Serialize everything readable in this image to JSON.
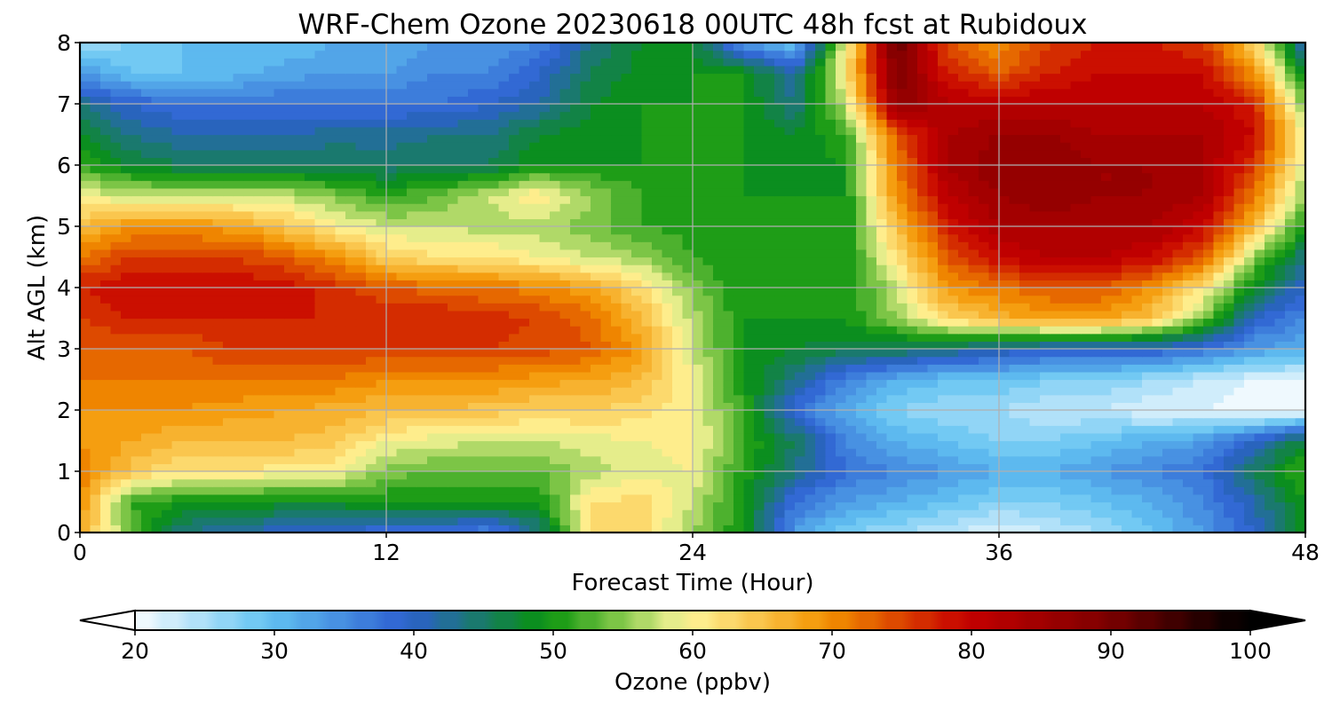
{
  "chart_data": {
    "type": "heatmap",
    "title": "WRF-Chem Ozone  20230618 00UTC 48h fcst at Rubidoux",
    "xlabel": "Forecast Time (Hour)",
    "ylabel": "Alt AGL (km)",
    "xlim": [
      0,
      48
    ],
    "ylim": [
      0,
      8
    ],
    "xticks": [
      0,
      12,
      24,
      36,
      48
    ],
    "yticks": [
      0,
      1,
      2,
      3,
      4,
      5,
      6,
      7,
      8
    ],
    "grid": true,
    "colorbar": {
      "label": "Ozone  (ppbv)",
      "range": [
        20,
        100
      ],
      "ticks": [
        20,
        30,
        40,
        50,
        60,
        70,
        80,
        90,
        100
      ],
      "extend": "both",
      "colors": [
        {
          "v": 20,
          "c": "#ffffff"
        },
        {
          "v": 30,
          "c": "#62c3f2"
        },
        {
          "v": 40,
          "c": "#2d5fd1"
        },
        {
          "v": 50,
          "c": "#07930b"
        },
        {
          "v": 55,
          "c": "#7cc546"
        },
        {
          "v": 60,
          "c": "#fff79c"
        },
        {
          "v": 70,
          "c": "#f49400"
        },
        {
          "v": 80,
          "c": "#c60000"
        },
        {
          "v": 90,
          "c": "#800000"
        },
        {
          "v": 100,
          "c": "#000000"
        }
      ]
    },
    "x": [
      0,
      2,
      4,
      6,
      8,
      10,
      12,
      14,
      16,
      18,
      20,
      22,
      24,
      26,
      28,
      30,
      32,
      34,
      36,
      38,
      40,
      42,
      44,
      46,
      48
    ],
    "y": [
      0,
      0.5,
      1,
      1.5,
      2,
      2.5,
      3,
      3.5,
      4,
      4.5,
      5,
      5.5,
      6,
      6.5,
      7,
      7.5,
      8
    ],
    "z": [
      [
        68,
        54,
        44,
        42,
        40,
        40,
        38,
        38,
        36,
        44,
        62,
        63,
        56,
        50,
        34,
        28,
        26,
        24,
        22,
        24,
        26,
        30,
        34,
        40,
        50
      ],
      [
        70,
        52,
        50,
        50,
        49,
        49,
        50,
        50,
        50,
        50,
        62,
        63,
        58,
        50,
        38,
        34,
        32,
        30,
        28,
        28,
        30,
        32,
        36,
        42,
        50
      ],
      [
        72,
        65,
        62,
        62,
        61,
        61,
        55,
        54,
        54,
        54,
        57,
        59,
        60,
        51,
        44,
        38,
        36,
        34,
        32,
        32,
        34,
        36,
        38,
        46,
        53
      ],
      [
        70,
        68,
        66,
        66,
        66,
        65,
        60,
        59,
        58,
        58,
        59,
        60,
        61,
        52,
        46,
        36,
        32,
        30,
        28,
        28,
        30,
        32,
        34,
        40,
        48
      ],
      [
        70,
        70,
        70,
        69,
        68,
        67,
        66,
        66,
        65,
        64,
        64,
        63,
        60,
        52,
        38,
        32,
        28,
        26,
        26,
        24,
        24,
        22,
        22,
        20,
        20
      ],
      [
        72,
        72,
        72,
        72,
        72,
        72,
        70,
        70,
        70,
        69,
        68,
        66,
        60,
        50,
        44,
        36,
        32,
        30,
        30,
        28,
        28,
        26,
        24,
        22,
        22
      ],
      [
        74,
        74,
        74,
        76,
        76,
        76,
        76,
        76,
        76,
        75,
        74,
        69,
        58,
        50,
        48,
        47,
        46,
        44,
        42,
        40,
        40,
        40,
        38,
        34,
        32
      ],
      [
        76,
        78,
        78,
        78,
        78,
        78,
        78,
        78,
        77,
        76,
        73,
        66,
        57,
        50,
        50,
        50,
        56,
        63,
        67,
        69,
        69,
        65,
        55,
        40,
        36
      ],
      [
        78,
        80,
        80,
        80,
        79,
        77,
        74,
        73,
        72,
        71,
        68,
        63,
        55,
        50,
        50,
        50,
        58,
        70,
        72,
        74,
        74,
        70,
        62,
        48,
        40
      ],
      [
        72,
        76,
        76,
        76,
        74,
        70,
        64,
        62,
        62,
        60,
        58,
        56,
        52,
        50,
        50,
        50,
        62,
        74,
        80,
        82,
        82,
        80,
        74,
        56,
        44
      ],
      [
        66,
        70,
        70,
        69,
        65,
        61,
        58,
        58,
        57,
        57,
        55,
        52,
        51,
        50,
        50,
        50,
        66,
        78,
        84,
        84,
        84,
        84,
        80,
        66,
        50
      ],
      [
        60,
        58,
        58,
        58,
        58,
        55,
        52,
        54,
        58,
        62,
        56,
        52,
        51,
        50,
        50,
        50,
        70,
        82,
        86,
        88,
        86,
        86,
        84,
        72,
        55
      ],
      [
        52,
        48,
        46,
        46,
        46,
        46,
        45,
        46,
        46,
        50,
        50,
        50,
        50,
        50,
        49,
        50,
        72,
        84,
        88,
        88,
        86,
        86,
        84,
        76,
        58
      ],
      [
        48,
        44,
        42,
        42,
        42,
        43,
        43,
        44,
        44,
        48,
        49,
        50,
        50,
        50,
        48,
        52,
        74,
        84,
        86,
        86,
        84,
        84,
        84,
        80,
        60
      ],
      [
        44,
        40,
        38,
        38,
        38,
        38,
        38,
        38,
        40,
        42,
        48,
        50,
        50,
        50,
        44,
        58,
        88,
        82,
        82,
        82,
        82,
        82,
        82,
        78,
        54
      ],
      [
        34,
        30,
        30,
        31,
        33,
        34,
        34,
        36,
        36,
        40,
        46,
        49,
        50,
        50,
        42,
        62,
        90,
        78,
        74,
        78,
        80,
        80,
        80,
        70,
        48
      ],
      [
        26,
        28,
        30,
        30,
        30,
        32,
        32,
        34,
        34,
        36,
        44,
        48,
        48,
        34,
        30,
        60,
        92,
        74,
        70,
        76,
        78,
        78,
        76,
        64,
        40
      ]
    ]
  }
}
